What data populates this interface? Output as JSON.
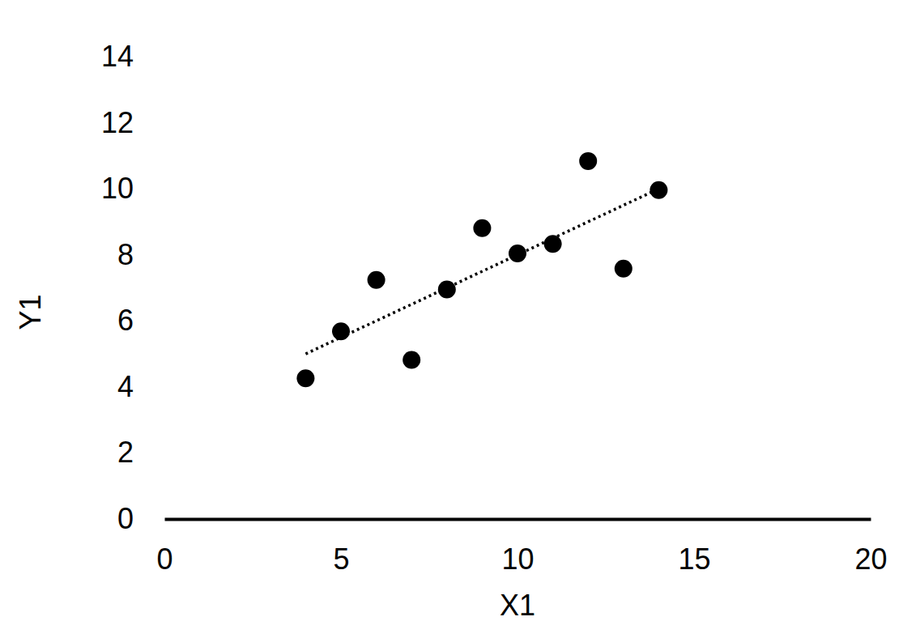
{
  "chart_data": {
    "type": "scatter",
    "x_label": "X1",
    "y_label": "Y1",
    "xlim": [
      0,
      20
    ],
    "xticks": [
      0,
      5,
      10,
      15,
      20
    ],
    "ylim": [
      0,
      14
    ],
    "yticks": [
      0,
      2,
      4,
      6,
      8,
      10,
      12,
      14
    ],
    "grid": false,
    "series": [
      {
        "type": "scatter",
        "color": "#000000",
        "marker": "circle",
        "x": [
          10,
          8,
          13,
          9,
          11,
          14,
          6,
          4,
          12,
          7,
          5
        ],
        "values": [
          8.04,
          6.95,
          7.58,
          8.81,
          8.33,
          9.96,
          7.24,
          4.26,
          10.84,
          4.82,
          5.68
        ]
      },
      {
        "type": "line",
        "color": "#000000",
        "line_style": "dotted",
        "x": [
          4,
          14
        ],
        "values": [
          5,
          10
        ]
      }
    ]
  }
}
